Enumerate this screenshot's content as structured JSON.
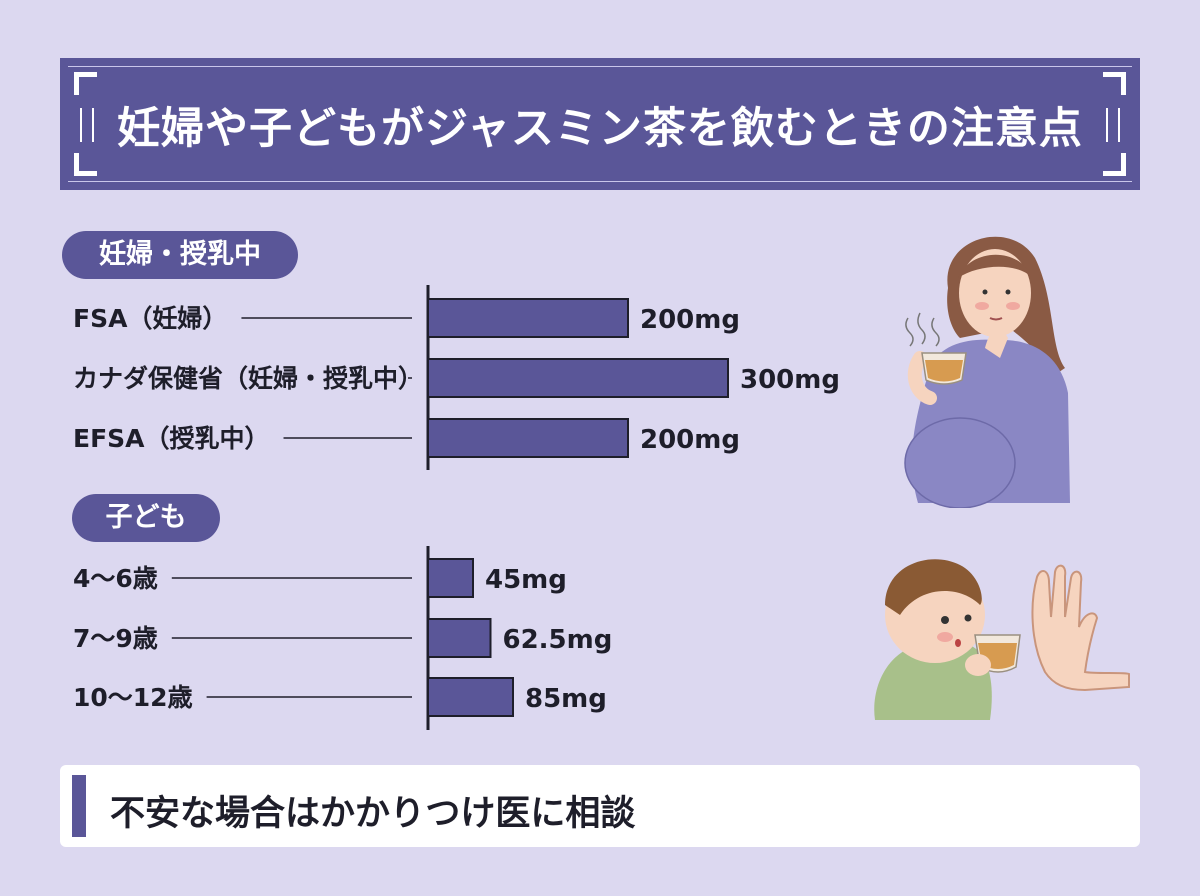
{
  "title": "妊婦や子どもがジャスミン茶を飲むときの注意点",
  "sections": [
    {
      "heading": "妊婦・授乳中"
    },
    {
      "heading": "子ども"
    }
  ],
  "colors": {
    "bar": "#5a5698",
    "banner": "#5a5698",
    "background": "#dcd8f0"
  },
  "chart_data": [
    {
      "type": "bar",
      "orientation": "horizontal",
      "categories": [
        "FSA（妊婦）",
        "カナダ保健省（妊婦・授乳中）",
        "EFSA（授乳中）"
      ],
      "values": [
        200,
        300,
        200
      ],
      "value_labels": [
        "200mg",
        "300mg",
        "200mg"
      ],
      "unit": "mg"
    },
    {
      "type": "bar",
      "orientation": "horizontal",
      "categories": [
        "4〜6歳",
        "7〜9歳",
        "10〜12歳"
      ],
      "values": [
        45,
        62.5,
        85
      ],
      "value_labels": [
        "45mg",
        "62.5mg",
        "85mg"
      ],
      "unit": "mg"
    }
  ],
  "footer": "不安な場合はかかりつけ医に相談",
  "illustrations": [
    "pregnant-woman-drinking-tea",
    "child-holding-tea-cup",
    "stop-hand"
  ]
}
